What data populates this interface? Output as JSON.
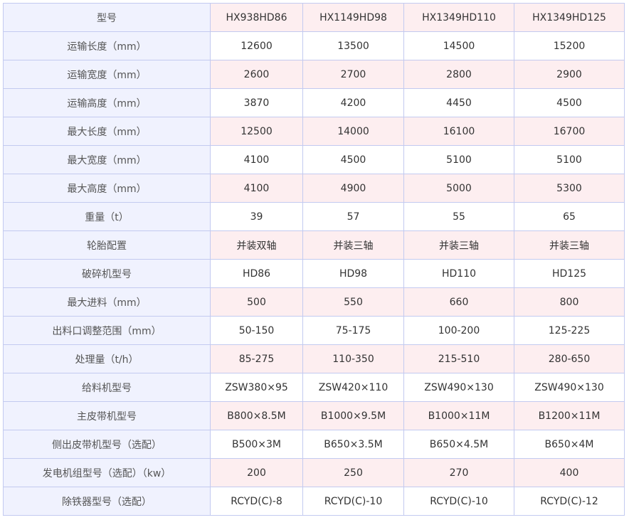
{
  "header": {
    "label": "型号",
    "models": [
      "HX938HD86",
      "HX1149HD98",
      "HX1349HD110",
      "HX1349HD125"
    ]
  },
  "rows": [
    {
      "label": "运输长度（mm）",
      "values": [
        "12600",
        "13500",
        "14500",
        "15200"
      ]
    },
    {
      "label": "运输宽度（mm）",
      "values": [
        "2600",
        "2700",
        "2800",
        "2900"
      ]
    },
    {
      "label": "运输高度（mm）",
      "values": [
        "3870",
        "4200",
        "4450",
        "4500"
      ]
    },
    {
      "label": "最大长度（mm）",
      "values": [
        "12500",
        "14000",
        "16100",
        "16700"
      ]
    },
    {
      "label": "最大宽度（mm）",
      "values": [
        "4100",
        "4500",
        "5100",
        "5100"
      ]
    },
    {
      "label": "最大高度（mm）",
      "values": [
        "4100",
        "4900",
        "5000",
        "5300"
      ]
    },
    {
      "label": "重量（t）",
      "values": [
        "39",
        "57",
        "55",
        "65"
      ]
    },
    {
      "label": "轮胎配置",
      "values": [
        "并装双轴",
        "并装三轴",
        "并装三轴",
        "并装三轴"
      ]
    },
    {
      "label": "破碎机型号",
      "values": [
        "HD86",
        "HD98",
        "HD110",
        "HD125"
      ]
    },
    {
      "label": "最大进料（mm）",
      "values": [
        "500",
        "550",
        "660",
        "800"
      ]
    },
    {
      "label": "出料口调整范围（mm）",
      "values": [
        "50-150",
        "75-175",
        "100-200",
        "125-225"
      ]
    },
    {
      "label": "处理量（t/h）",
      "values": [
        "85-275",
        "110-350",
        "215-510",
        "280-650"
      ]
    },
    {
      "label": "给料机型号",
      "values": [
        "ZSW380×95",
        "ZSW420×110",
        "ZSW490×130",
        "ZSW490×130"
      ]
    },
    {
      "label": "主皮带机型号",
      "values": [
        "B800×8.5M",
        "B1000×9.5M",
        "B1000×11M",
        "B1200×11M"
      ]
    },
    {
      "label": "侧出皮带机型号（选配）",
      "values": [
        "B500×3M",
        "B650×3.5M",
        "B650×4.5M",
        "B650×4M"
      ]
    },
    {
      "label": "发电机组型号（选配）（kw）",
      "values": [
        "200",
        "250",
        "270",
        "400"
      ]
    },
    {
      "label": "除铁器型号（选配）",
      "values": [
        "RCYD(C)-8",
        "RCYD(C)-10",
        "RCYD(C)-10",
        "RCYD(C)-12"
      ]
    }
  ],
  "colors": {
    "label_bg": "#f0f2fe",
    "alt_row_bg": "#fdeef0",
    "border": "#c3caf0"
  }
}
